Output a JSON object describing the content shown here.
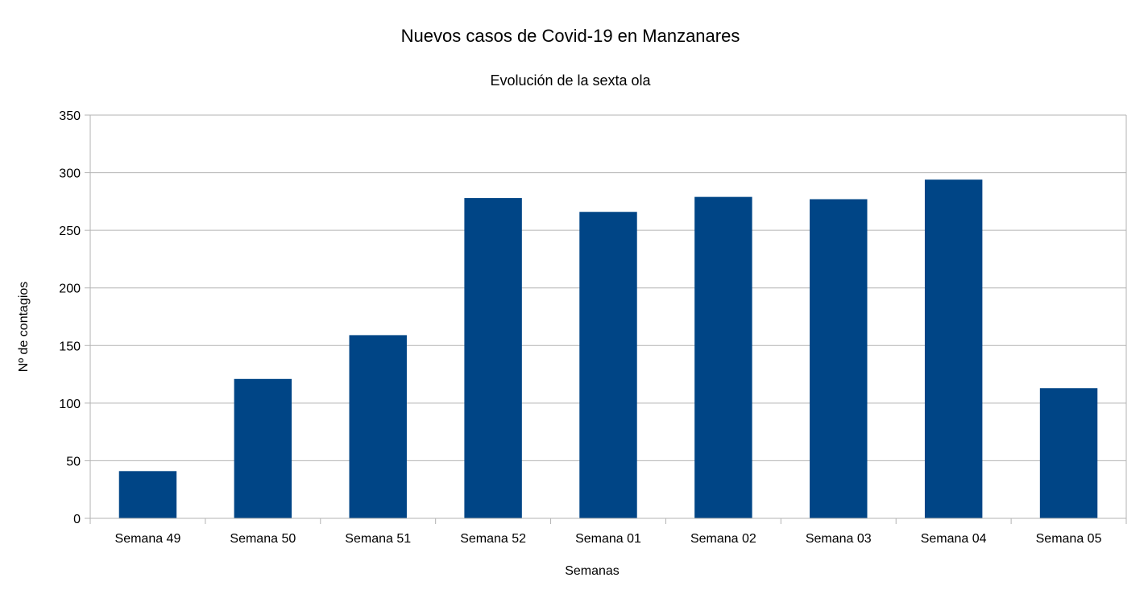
{
  "chart_data": {
    "type": "bar",
    "title": "Nuevos casos de Covid-19 en Manzanares",
    "subtitle": "Evolución de la sexta ola",
    "xlabel": "Semanas",
    "ylabel": "Nº de contagios",
    "categories": [
      "Semana 49",
      "Semana 50",
      "Semana 51",
      "Semana 52",
      "Semana 01",
      "Semana 02",
      "Semana 03",
      "Semana 04",
      "Semana 05"
    ],
    "values": [
      41,
      121,
      159,
      278,
      266,
      279,
      277,
      294,
      113
    ],
    "ylim": [
      0,
      350
    ],
    "yticks": [
      0,
      50,
      100,
      150,
      200,
      250,
      300,
      350
    ],
    "grid": true,
    "legend": "none",
    "bar_color": "#004586",
    "grid_color": "#b3b3b3"
  }
}
